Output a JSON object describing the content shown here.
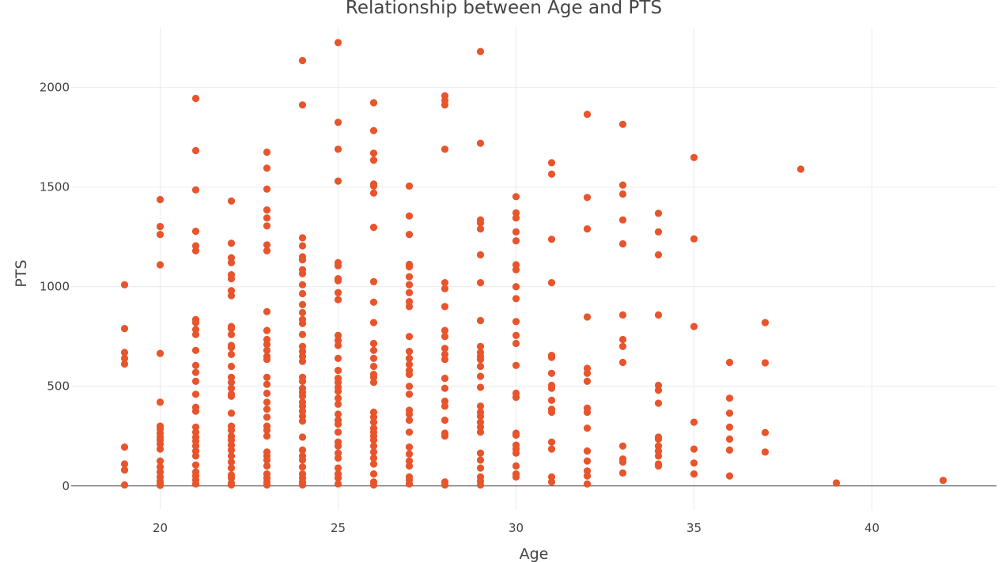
{
  "chart_data": {
    "type": "scatter",
    "title": "Relationship between Age and PTS",
    "xlabel": "Age",
    "ylabel": "PTS",
    "xlim": [
      17.5,
      43.5
    ],
    "ylim": [
      -120,
      2300
    ],
    "x_ticks": [
      20,
      25,
      30,
      35,
      40
    ],
    "y_ticks": [
      0,
      500,
      1000,
      1500,
      2000
    ],
    "grid": true,
    "marker_color": "#e8542b",
    "points": [
      [
        19,
        1010
      ],
      [
        19,
        790
      ],
      [
        19,
        670
      ],
      [
        19,
        640
      ],
      [
        19,
        612
      ],
      [
        19,
        195
      ],
      [
        19,
        110
      ],
      [
        19,
        80
      ],
      [
        19,
        5
      ],
      [
        20,
        1437
      ],
      [
        20,
        1302
      ],
      [
        20,
        1262
      ],
      [
        20,
        1110
      ],
      [
        20,
        665
      ],
      [
        20,
        420
      ],
      [
        20,
        300
      ],
      [
        20,
        285
      ],
      [
        20,
        265
      ],
      [
        20,
        245
      ],
      [
        20,
        230
      ],
      [
        20,
        210
      ],
      [
        20,
        185
      ],
      [
        20,
        125
      ],
      [
        20,
        95
      ],
      [
        20,
        70
      ],
      [
        20,
        45
      ],
      [
        20,
        25
      ],
      [
        20,
        10
      ],
      [
        20,
        3
      ],
      [
        21,
        1945
      ],
      [
        21,
        1683
      ],
      [
        21,
        1486
      ],
      [
        21,
        1278
      ],
      [
        21,
        1205
      ],
      [
        21,
        1180
      ],
      [
        21,
        835
      ],
      [
        21,
        820
      ],
      [
        21,
        785
      ],
      [
        21,
        760
      ],
      [
        21,
        680
      ],
      [
        21,
        605
      ],
      [
        21,
        570
      ],
      [
        21,
        525
      ],
      [
        21,
        460
      ],
      [
        21,
        395
      ],
      [
        21,
        375
      ],
      [
        21,
        295
      ],
      [
        21,
        270
      ],
      [
        21,
        245
      ],
      [
        21,
        225
      ],
      [
        21,
        200
      ],
      [
        21,
        175
      ],
      [
        21,
        150
      ],
      [
        21,
        105
      ],
      [
        21,
        70
      ],
      [
        21,
        50
      ],
      [
        21,
        30
      ],
      [
        21,
        10
      ],
      [
        22,
        1430
      ],
      [
        22,
        1218
      ],
      [
        22,
        1145
      ],
      [
        22,
        1120
      ],
      [
        22,
        1060
      ],
      [
        22,
        1040
      ],
      [
        22,
        980
      ],
      [
        22,
        955
      ],
      [
        22,
        800
      ],
      [
        22,
        790
      ],
      [
        22,
        760
      ],
      [
        22,
        705
      ],
      [
        22,
        695
      ],
      [
        22,
        660
      ],
      [
        22,
        600
      ],
      [
        22,
        545
      ],
      [
        22,
        520
      ],
      [
        22,
        490
      ],
      [
        22,
        460
      ],
      [
        22,
        450
      ],
      [
        22,
        365
      ],
      [
        22,
        300
      ],
      [
        22,
        280
      ],
      [
        22,
        250
      ],
      [
        22,
        230
      ],
      [
        22,
        205
      ],
      [
        22,
        180
      ],
      [
        22,
        150
      ],
      [
        22,
        120
      ],
      [
        22,
        90
      ],
      [
        22,
        55
      ],
      [
        22,
        40
      ],
      [
        22,
        15
      ],
      [
        22,
        5
      ],
      [
        23,
        1675
      ],
      [
        23,
        1595
      ],
      [
        23,
        1490
      ],
      [
        23,
        1385
      ],
      [
        23,
        1345
      ],
      [
        23,
        1305
      ],
      [
        23,
        1210
      ],
      [
        23,
        1180
      ],
      [
        23,
        875
      ],
      [
        23,
        780
      ],
      [
        23,
        735
      ],
      [
        23,
        710
      ],
      [
        23,
        680
      ],
      [
        23,
        650
      ],
      [
        23,
        635
      ],
      [
        23,
        545
      ],
      [
        23,
        510
      ],
      [
        23,
        465
      ],
      [
        23,
        420
      ],
      [
        23,
        385
      ],
      [
        23,
        345
      ],
      [
        23,
        300
      ],
      [
        23,
        280
      ],
      [
        23,
        250
      ],
      [
        23,
        170
      ],
      [
        23,
        150
      ],
      [
        23,
        130
      ],
      [
        23,
        100
      ],
      [
        23,
        60
      ],
      [
        23,
        40
      ],
      [
        23,
        20
      ],
      [
        23,
        5
      ],
      [
        24,
        2135
      ],
      [
        24,
        1912
      ],
      [
        24,
        1245
      ],
      [
        24,
        1205
      ],
      [
        24,
        1150
      ],
      [
        24,
        1135
      ],
      [
        24,
        1085
      ],
      [
        24,
        1065
      ],
      [
        24,
        1010
      ],
      [
        24,
        965
      ],
      [
        24,
        910
      ],
      [
        24,
        870
      ],
      [
        24,
        835
      ],
      [
        24,
        815
      ],
      [
        24,
        760
      ],
      [
        24,
        700
      ],
      [
        24,
        675
      ],
      [
        24,
        650
      ],
      [
        24,
        625
      ],
      [
        24,
        545
      ],
      [
        24,
        525
      ],
      [
        24,
        490
      ],
      [
        24,
        470
      ],
      [
        24,
        450
      ],
      [
        24,
        420
      ],
      [
        24,
        400
      ],
      [
        24,
        375
      ],
      [
        24,
        350
      ],
      [
        24,
        325
      ],
      [
        24,
        245
      ],
      [
        24,
        180
      ],
      [
        24,
        150
      ],
      [
        24,
        130
      ],
      [
        24,
        95
      ],
      [
        24,
        60
      ],
      [
        24,
        40
      ],
      [
        24,
        20
      ],
      [
        24,
        5
      ],
      [
        25,
        2225
      ],
      [
        25,
        1825
      ],
      [
        25,
        1690
      ],
      [
        25,
        1530
      ],
      [
        25,
        1120
      ],
      [
        25,
        1105
      ],
      [
        25,
        1040
      ],
      [
        25,
        1030
      ],
      [
        25,
        970
      ],
      [
        25,
        935
      ],
      [
        25,
        755
      ],
      [
        25,
        730
      ],
      [
        25,
        705
      ],
      [
        25,
        640
      ],
      [
        25,
        580
      ],
      [
        25,
        540
      ],
      [
        25,
        520
      ],
      [
        25,
        495
      ],
      [
        25,
        475
      ],
      [
        25,
        440
      ],
      [
        25,
        410
      ],
      [
        25,
        360
      ],
      [
        25,
        330
      ],
      [
        25,
        310
      ],
      [
        25,
        270
      ],
      [
        25,
        220
      ],
      [
        25,
        200
      ],
      [
        25,
        165
      ],
      [
        25,
        140
      ],
      [
        25,
        90
      ],
      [
        25,
        60
      ],
      [
        25,
        40
      ],
      [
        25,
        10
      ],
      [
        26,
        1923
      ],
      [
        26,
        1783
      ],
      [
        26,
        1670
      ],
      [
        26,
        1635
      ],
      [
        26,
        1515
      ],
      [
        26,
        1505
      ],
      [
        26,
        1470
      ],
      [
        26,
        1298
      ],
      [
        26,
        1025
      ],
      [
        26,
        922
      ],
      [
        26,
        820
      ],
      [
        26,
        715
      ],
      [
        26,
        680
      ],
      [
        26,
        640
      ],
      [
        26,
        600
      ],
      [
        26,
        560
      ],
      [
        26,
        545
      ],
      [
        26,
        520
      ],
      [
        26,
        370
      ],
      [
        26,
        345
      ],
      [
        26,
        320
      ],
      [
        26,
        290
      ],
      [
        26,
        270
      ],
      [
        26,
        250
      ],
      [
        26,
        230
      ],
      [
        26,
        200
      ],
      [
        26,
        170
      ],
      [
        26,
        140
      ],
      [
        26,
        110
      ],
      [
        26,
        60
      ],
      [
        26,
        20
      ],
      [
        26,
        5
      ],
      [
        27,
        1505
      ],
      [
        27,
        1355
      ],
      [
        27,
        1262
      ],
      [
        27,
        1112
      ],
      [
        27,
        1100
      ],
      [
        27,
        1050
      ],
      [
        27,
        1010
      ],
      [
        27,
        970
      ],
      [
        27,
        925
      ],
      [
        27,
        900
      ],
      [
        27,
        750
      ],
      [
        27,
        675
      ],
      [
        27,
        640
      ],
      [
        27,
        610
      ],
      [
        27,
        580
      ],
      [
        27,
        560
      ],
      [
        27,
        500
      ],
      [
        27,
        460
      ],
      [
        27,
        380
      ],
      [
        27,
        360
      ],
      [
        27,
        330
      ],
      [
        27,
        270
      ],
      [
        27,
        195
      ],
      [
        27,
        160
      ],
      [
        27,
        125
      ],
      [
        27,
        100
      ],
      [
        27,
        45
      ],
      [
        27,
        30
      ],
      [
        27,
        10
      ],
      [
        28,
        1958
      ],
      [
        28,
        1935
      ],
      [
        28,
        1912
      ],
      [
        28,
        1690
      ],
      [
        28,
        1020
      ],
      [
        28,
        990
      ],
      [
        28,
        900
      ],
      [
        28,
        780
      ],
      [
        28,
        750
      ],
      [
        28,
        690
      ],
      [
        28,
        660
      ],
      [
        28,
        635
      ],
      [
        28,
        540
      ],
      [
        28,
        490
      ],
      [
        28,
        425
      ],
      [
        28,
        400
      ],
      [
        28,
        330
      ],
      [
        28,
        265
      ],
      [
        28,
        250
      ],
      [
        28,
        20
      ],
      [
        28,
        5
      ],
      [
        29,
        2180
      ],
      [
        29,
        1720
      ],
      [
        29,
        1335
      ],
      [
        29,
        1320
      ],
      [
        29,
        1290
      ],
      [
        29,
        1160
      ],
      [
        29,
        1020
      ],
      [
        29,
        830
      ],
      [
        29,
        700
      ],
      [
        29,
        670
      ],
      [
        29,
        650
      ],
      [
        29,
        635
      ],
      [
        29,
        600
      ],
      [
        29,
        550
      ],
      [
        29,
        495
      ],
      [
        29,
        400
      ],
      [
        29,
        370
      ],
      [
        29,
        350
      ],
      [
        29,
        320
      ],
      [
        29,
        295
      ],
      [
        29,
        270
      ],
      [
        29,
        165
      ],
      [
        29,
        130
      ],
      [
        29,
        90
      ],
      [
        29,
        45
      ],
      [
        29,
        25
      ],
      [
        29,
        5
      ],
      [
        30,
        1452
      ],
      [
        30,
        1370
      ],
      [
        30,
        1345
      ],
      [
        30,
        1275
      ],
      [
        30,
        1230
      ],
      [
        30,
        1110
      ],
      [
        30,
        1085
      ],
      [
        30,
        1000
      ],
      [
        30,
        940
      ],
      [
        30,
        825
      ],
      [
        30,
        755
      ],
      [
        30,
        715
      ],
      [
        30,
        605
      ],
      [
        30,
        465
      ],
      [
        30,
        445
      ],
      [
        30,
        265
      ],
      [
        30,
        255
      ],
      [
        30,
        205
      ],
      [
        30,
        185
      ],
      [
        30,
        165
      ],
      [
        30,
        100
      ],
      [
        30,
        60
      ],
      [
        30,
        45
      ],
      [
        31,
        1622
      ],
      [
        31,
        1565
      ],
      [
        31,
        1238
      ],
      [
        31,
        1020
      ],
      [
        31,
        655
      ],
      [
        31,
        645
      ],
      [
        31,
        565
      ],
      [
        31,
        505
      ],
      [
        31,
        490
      ],
      [
        31,
        430
      ],
      [
        31,
        385
      ],
      [
        31,
        370
      ],
      [
        31,
        220
      ],
      [
        31,
        185
      ],
      [
        31,
        45
      ],
      [
        31,
        20
      ],
      [
        32,
        1865
      ],
      [
        32,
        1448
      ],
      [
        32,
        1290
      ],
      [
        32,
        848
      ],
      [
        32,
        590
      ],
      [
        32,
        565
      ],
      [
        32,
        525
      ],
      [
        32,
        390
      ],
      [
        32,
        370
      ],
      [
        32,
        290
      ],
      [
        32,
        175
      ],
      [
        32,
        125
      ],
      [
        32,
        75
      ],
      [
        32,
        50
      ],
      [
        32,
        10
      ],
      [
        33,
        1815
      ],
      [
        33,
        1510
      ],
      [
        33,
        1465
      ],
      [
        33,
        1335
      ],
      [
        33,
        1215
      ],
      [
        33,
        858
      ],
      [
        33,
        735
      ],
      [
        33,
        700
      ],
      [
        33,
        620
      ],
      [
        33,
        200
      ],
      [
        33,
        135
      ],
      [
        33,
        120
      ],
      [
        33,
        65
      ],
      [
        34,
        1368
      ],
      [
        34,
        1275
      ],
      [
        34,
        1160
      ],
      [
        34,
        858
      ],
      [
        34,
        505
      ],
      [
        34,
        480
      ],
      [
        34,
        415
      ],
      [
        34,
        245
      ],
      [
        34,
        235
      ],
      [
        34,
        200
      ],
      [
        34,
        175
      ],
      [
        34,
        150
      ],
      [
        34,
        110
      ],
      [
        34,
        100
      ],
      [
        35,
        1648
      ],
      [
        35,
        1240
      ],
      [
        35,
        800
      ],
      [
        35,
        320
      ],
      [
        35,
        185
      ],
      [
        35,
        115
      ],
      [
        35,
        60
      ],
      [
        36,
        620
      ],
      [
        36,
        440
      ],
      [
        36,
        365
      ],
      [
        36,
        295
      ],
      [
        36,
        235
      ],
      [
        36,
        180
      ],
      [
        36,
        50
      ],
      [
        37,
        820
      ],
      [
        37,
        618
      ],
      [
        37,
        268
      ],
      [
        37,
        170
      ],
      [
        38,
        1590
      ],
      [
        39,
        15
      ],
      [
        42,
        28
      ]
    ]
  }
}
